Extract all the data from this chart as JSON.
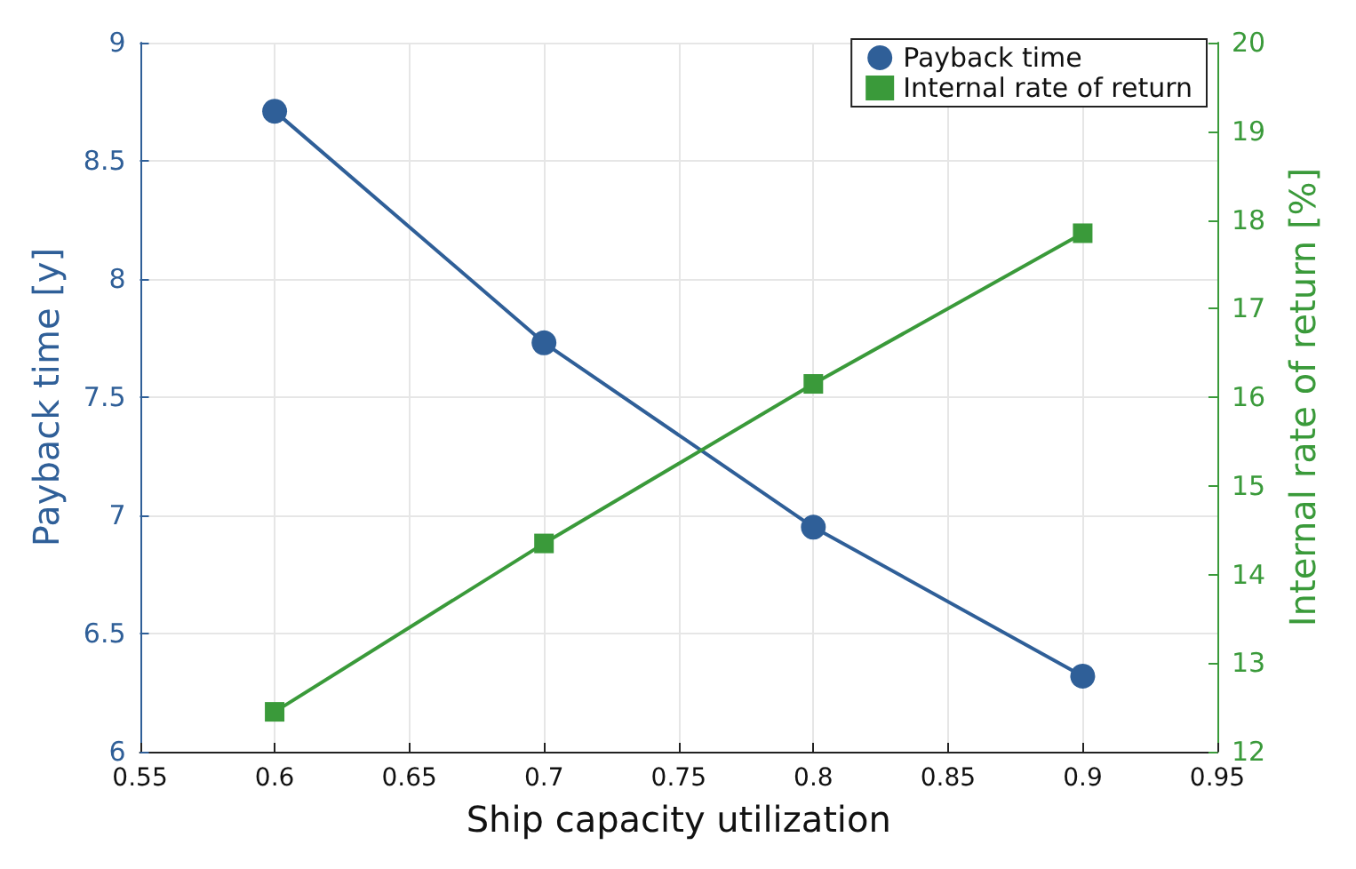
{
  "chart_data": {
    "type": "line",
    "xlabel": "Ship capacity utilization",
    "ylabel": "Payback time [y]",
    "y2label": "Internal rate of return [%]",
    "x": [
      0.6,
      0.7,
      0.8,
      0.9
    ],
    "series": [
      {
        "name": "Payback time",
        "color": "#2f5f98",
        "values": [
          8.71,
          7.73,
          6.95,
          6.32
        ],
        "marker": "circle"
      },
      {
        "name": "Internal rate of return",
        "color": "#3a9a3a",
        "values": [
          12.45,
          14.35,
          16.15,
          17.85
        ],
        "axis": "y2",
        "marker": "square"
      }
    ],
    "xlim": [
      0.55,
      0.95
    ],
    "xticks": [
      0.55,
      0.6,
      0.65,
      0.7,
      0.75,
      0.8,
      0.85,
      0.9,
      0.95
    ],
    "ylim": [
      6,
      9
    ],
    "yticks": [
      6,
      6.5,
      7,
      7.5,
      8,
      8.5,
      9
    ],
    "y2lim": [
      12,
      20
    ],
    "y2ticks": [
      12,
      13,
      14,
      15,
      16,
      17,
      18,
      19,
      20
    ],
    "grid": true,
    "legend": "top right",
    "line_style": "solid"
  }
}
